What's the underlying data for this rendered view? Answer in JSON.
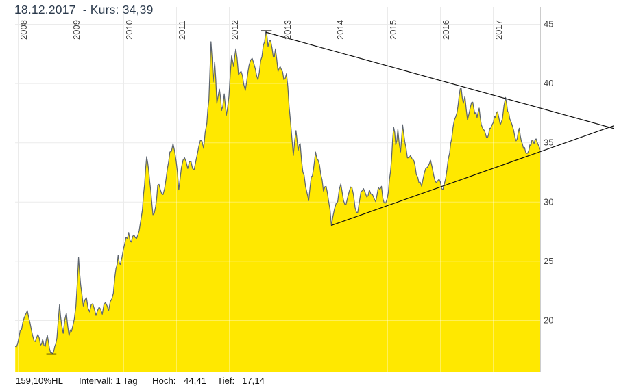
{
  "header": {
    "title": "18.12.2017  - Kurs: 34,39"
  },
  "footer": {
    "range_label": "159,10%HL",
    "interval_label": "Intervall: 1 Tag",
    "high_label": "Hoch:",
    "high_value": "44,41",
    "low_label": "Tief:",
    "low_value": "17,14"
  },
  "chart_data": {
    "type": "area",
    "title": "",
    "series_name": "Kurs",
    "x_unit": "year_decimal",
    "x_axis": {
      "position": "top",
      "tick_labels": [
        "2008",
        "2009",
        "2010",
        "2011",
        "2012",
        "2013",
        "2014",
        "2015",
        "2016",
        "2017"
      ],
      "ticks": [
        2008,
        2009,
        2010,
        2011,
        2012,
        2013,
        2014,
        2015,
        2016,
        2017
      ],
      "label_rotation": -90
    },
    "y_axis": {
      "position": "right",
      "tick_labels": [
        "45",
        "40",
        "35",
        "30",
        "25",
        "20"
      ],
      "ticks": [
        45,
        40,
        35,
        30,
        25,
        20
      ],
      "range": [
        15.7,
        46.4
      ]
    },
    "x_range": [
      2007.948,
      2017.9
    ],
    "grid": true,
    "legend": false,
    "points": [
      [
        2007.95,
        17.8
      ],
      [
        2008.02,
        18.5
      ],
      [
        2008.07,
        19.2
      ],
      [
        2008.12,
        20.2
      ],
      [
        2008.18,
        20.8
      ],
      [
        2008.23,
        19.8
      ],
      [
        2008.28,
        18.7
      ],
      [
        2008.33,
        18.2
      ],
      [
        2008.38,
        18.8
      ],
      [
        2008.43,
        17.9
      ],
      [
        2008.47,
        18.4
      ],
      [
        2008.52,
        17.8
      ],
      [
        2008.56,
        18.7
      ],
      [
        2008.6,
        17.6
      ],
      [
        2008.64,
        17.3
      ],
      [
        2008.66,
        17.14
      ],
      [
        2008.7,
        17.8
      ],
      [
        2008.74,
        18.5
      ],
      [
        2008.79,
        21.3
      ],
      [
        2008.83,
        19.6
      ],
      [
        2008.86,
        18.9
      ],
      [
        2008.92,
        20.6
      ],
      [
        2008.97,
        18.7
      ],
      [
        2009.04,
        19.5
      ],
      [
        2009.1,
        21.2
      ],
      [
        2009.15,
        25.3
      ],
      [
        2009.19,
        23.0
      ],
      [
        2009.24,
        21.2
      ],
      [
        2009.3,
        21.9
      ],
      [
        2009.36,
        20.7
      ],
      [
        2009.42,
        21.4
      ],
      [
        2009.48,
        20.4
      ],
      [
        2009.54,
        21.1
      ],
      [
        2009.6,
        20.5
      ],
      [
        2009.66,
        21.5
      ],
      [
        2009.72,
        20.8
      ],
      [
        2009.78,
        21.8
      ],
      [
        2009.81,
        22.3
      ],
      [
        2009.86,
        24.4
      ],
      [
        2009.9,
        25.5
      ],
      [
        2009.94,
        24.7
      ],
      [
        2010.0,
        26.0
      ],
      [
        2010.05,
        27.0
      ],
      [
        2010.1,
        27.4
      ],
      [
        2010.15,
        26.6
      ],
      [
        2010.2,
        27.2
      ],
      [
        2010.25,
        26.9
      ],
      [
        2010.3,
        27.6
      ],
      [
        2010.36,
        29.3
      ],
      [
        2010.4,
        31.4
      ],
      [
        2010.44,
        33.8
      ],
      [
        2010.48,
        32.6
      ],
      [
        2010.52,
        30.9
      ],
      [
        2010.56,
        28.9
      ],
      [
        2010.61,
        29.6
      ],
      [
        2010.65,
        31.4
      ],
      [
        2010.7,
        31.0
      ],
      [
        2010.75,
        30.6
      ],
      [
        2010.81,
        32.0
      ],
      [
        2010.88,
        34.2
      ],
      [
        2010.94,
        34.9
      ],
      [
        2011.0,
        33.4
      ],
      [
        2011.05,
        31.0
      ],
      [
        2011.1,
        32.9
      ],
      [
        2011.16,
        33.7
      ],
      [
        2011.22,
        32.8
      ],
      [
        2011.28,
        33.4
      ],
      [
        2011.34,
        32.7
      ],
      [
        2011.4,
        34.0
      ],
      [
        2011.46,
        35.2
      ],
      [
        2011.52,
        34.5
      ],
      [
        2011.58,
        36.6
      ],
      [
        2011.62,
        38.6
      ],
      [
        2011.66,
        43.5
      ],
      [
        2011.7,
        40.1
      ],
      [
        2011.73,
        41.8
      ],
      [
        2011.77,
        38.3
      ],
      [
        2011.82,
        39.5
      ],
      [
        2011.86,
        37.7
      ],
      [
        2011.91,
        39.1
      ],
      [
        2011.95,
        37.3
      ],
      [
        2012.0,
        38.9
      ],
      [
        2012.05,
        42.3
      ],
      [
        2012.09,
        41.4
      ],
      [
        2012.13,
        42.9
      ],
      [
        2012.18,
        40.7
      ],
      [
        2012.23,
        41.0
      ],
      [
        2012.28,
        39.9
      ],
      [
        2012.31,
        39.4
      ],
      [
        2012.38,
        41.5
      ],
      [
        2012.44,
        42.1
      ],
      [
        2012.5,
        41.2
      ],
      [
        2012.55,
        40.3
      ],
      [
        2012.6,
        41.9
      ],
      [
        2012.65,
        43.2
      ],
      [
        2012.7,
        44.41
      ],
      [
        2012.74,
        43.1
      ],
      [
        2012.79,
        43.6
      ],
      [
        2012.84,
        42.2
      ],
      [
        2012.88,
        42.9
      ],
      [
        2012.93,
        41.0
      ],
      [
        2012.97,
        41.4
      ],
      [
        2013.04,
        40.3
      ],
      [
        2013.09,
        40.8
      ],
      [
        2013.14,
        38.0
      ],
      [
        2013.19,
        35.5
      ],
      [
        2013.22,
        33.9
      ],
      [
        2013.27,
        36.0
      ],
      [
        2013.31,
        34.3
      ],
      [
        2013.35,
        34.9
      ],
      [
        2013.4,
        32.5
      ],
      [
        2013.45,
        31.3
      ],
      [
        2013.51,
        30.1
      ],
      [
        2013.56,
        32.1
      ],
      [
        2013.6,
        32.7
      ],
      [
        2013.64,
        34.2
      ],
      [
        2013.69,
        33.5
      ],
      [
        2013.74,
        32.3
      ],
      [
        2013.79,
        30.9
      ],
      [
        2013.84,
        31.3
      ],
      [
        2013.89,
        30.0
      ],
      [
        2013.94,
        28.0
      ],
      [
        2014.0,
        29.4
      ],
      [
        2014.06,
        30.0
      ],
      [
        2014.12,
        31.5
      ],
      [
        2014.17,
        30.1
      ],
      [
        2014.22,
        29.8
      ],
      [
        2014.28,
        30.9
      ],
      [
        2014.33,
        31.2
      ],
      [
        2014.39,
        29.5
      ],
      [
        2014.44,
        29.1
      ],
      [
        2014.5,
        30.8
      ],
      [
        2014.55,
        31.1
      ],
      [
        2014.61,
        30.4
      ],
      [
        2014.66,
        31.0
      ],
      [
        2014.72,
        30.6
      ],
      [
        2014.78,
        30.0
      ],
      [
        2014.83,
        31.2
      ],
      [
        2014.89,
        31.3
      ],
      [
        2014.94,
        29.9
      ],
      [
        2015.0,
        30.3
      ],
      [
        2015.04,
        31.9
      ],
      [
        2015.08,
        33.6
      ],
      [
        2015.12,
        36.3
      ],
      [
        2015.16,
        34.8
      ],
      [
        2015.2,
        36.1
      ],
      [
        2015.25,
        34.2
      ],
      [
        2015.29,
        36.5
      ],
      [
        2015.33,
        35.1
      ],
      [
        2015.38,
        33.7
      ],
      [
        2015.44,
        33.9
      ],
      [
        2015.5,
        33.5
      ],
      [
        2015.55,
        32.3
      ],
      [
        2015.6,
        31.6
      ],
      [
        2015.65,
        31.3
      ],
      [
        2015.7,
        32.4
      ],
      [
        2015.76,
        32.9
      ],
      [
        2015.82,
        33.5
      ],
      [
        2015.88,
        32.2
      ],
      [
        2015.93,
        31.6
      ],
      [
        2015.98,
        31.9
      ],
      [
        2016.03,
        31.1
      ],
      [
        2016.08,
        31.5
      ],
      [
        2016.13,
        32.7
      ],
      [
        2016.18,
        34.1
      ],
      [
        2016.22,
        35.3
      ],
      [
        2016.27,
        36.9
      ],
      [
        2016.32,
        37.5
      ],
      [
        2016.36,
        38.9
      ],
      [
        2016.4,
        39.6
      ],
      [
        2016.44,
        38.3
      ],
      [
        2016.47,
        38.9
      ],
      [
        2016.52,
        36.9
      ],
      [
        2016.57,
        37.9
      ],
      [
        2016.62,
        38.4
      ],
      [
        2016.66,
        37.4
      ],
      [
        2016.7,
        37.1
      ],
      [
        2016.74,
        37.9
      ],
      [
        2016.78,
        36.5
      ],
      [
        2016.84,
        36.0
      ],
      [
        2016.88,
        35.4
      ],
      [
        2016.92,
        35.7
      ],
      [
        2016.96,
        36.2
      ],
      [
        2017.01,
        36.7
      ],
      [
        2017.05,
        37.1
      ],
      [
        2017.09,
        37.6
      ],
      [
        2017.14,
        36.5
      ],
      [
        2017.18,
        37.0
      ],
      [
        2017.21,
        38.1
      ],
      [
        2017.24,
        38.8
      ],
      [
        2017.28,
        37.6
      ],
      [
        2017.32,
        37.0
      ],
      [
        2017.37,
        36.4
      ],
      [
        2017.42,
        35.4
      ],
      [
        2017.46,
        35.3
      ],
      [
        2017.5,
        36.2
      ],
      [
        2017.54,
        35.1
      ],
      [
        2017.58,
        34.5
      ],
      [
        2017.62,
        34.2
      ],
      [
        2017.66,
        34.1
      ],
      [
        2017.7,
        34.8
      ],
      [
        2017.74,
        35.2
      ],
      [
        2017.78,
        34.9
      ],
      [
        2017.82,
        35.3
      ],
      [
        2017.85,
        34.9
      ],
      [
        2017.88,
        34.6
      ],
      [
        2017.9,
        34.39
      ]
    ],
    "annotations": {
      "trend_upper": {
        "x1": 2012.7,
        "v1": 44.3,
        "x2": 2019.29,
        "v2": 36.18
      },
      "trend_lower": {
        "x1": 2013.94,
        "v1": 28.0,
        "x2": 2019.29,
        "v2": 36.41
      },
      "apex": {
        "x": 2019.21,
        "v": 36.28
      },
      "high_tick": {
        "x1": 2012.61,
        "x2": 2012.81,
        "value": 44.41
      },
      "low_tick": {
        "x1": 2008.54,
        "x2": 2008.73,
        "value": 17.14
      }
    },
    "colors": {
      "area_fill": "#ffe800",
      "price_line": "#5d6570",
      "trend_line": "#0d0d0d",
      "grid": "#ebebeb",
      "grid_on_area": "rgba(255,255,255,0.35)",
      "axis_line": "#cccccc",
      "top_border": "#dcdcdc",
      "axis_text": "#444444",
      "title_text": "#2c3b4d",
      "footer_text": "#111111"
    }
  }
}
